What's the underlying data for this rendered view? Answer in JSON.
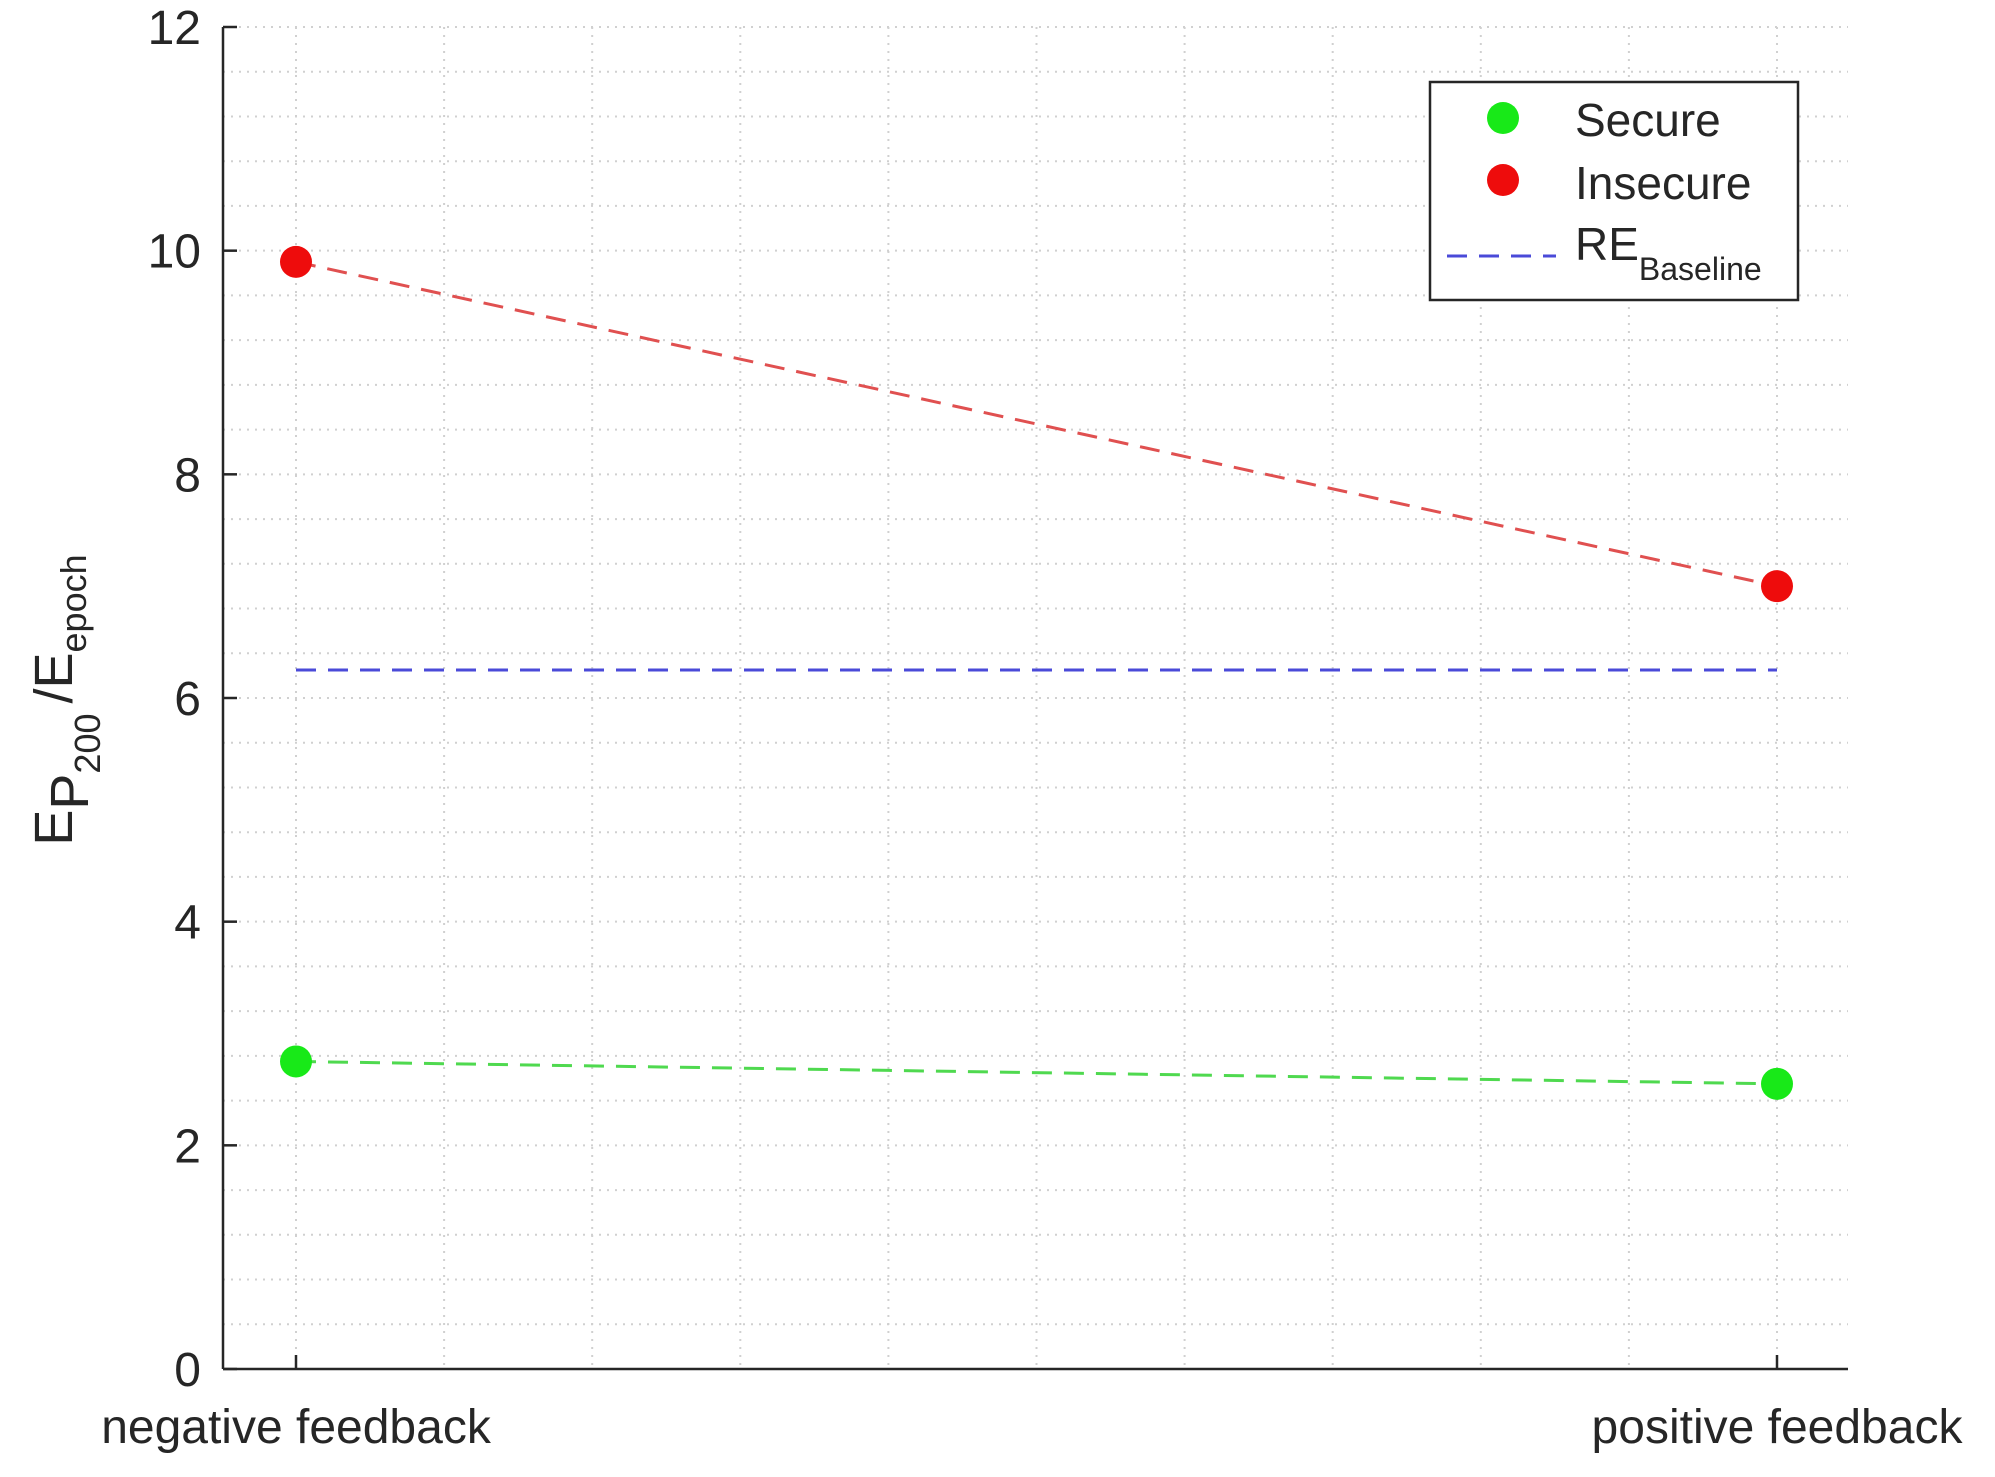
{
  "chart_data": {
    "type": "line",
    "categories": [
      "negative feedback",
      "positive feedback"
    ],
    "series": [
      {
        "name": "Secure",
        "values": [
          2.75,
          2.55
        ],
        "color": "#18e918",
        "marker": "circle",
        "line": "dashed"
      },
      {
        "name": "Insecure",
        "values": [
          9.9,
          7.0
        ],
        "color": "#ee0c0c",
        "marker": "circle",
        "line": "dashed"
      }
    ],
    "reference_lines": [
      {
        "name_main": "RE",
        "name_sub": "Baseline",
        "value": 6.25,
        "color": "#4a4ad8",
        "line": "dashed"
      }
    ],
    "ylabel": {
      "main_1": "E",
      "sub_1": "P",
      "sub_2": "200",
      "main_2": "/E",
      "sub_3": "epoch"
    },
    "xlabel": "",
    "ylim": [
      0,
      12
    ],
    "yticks": [
      "0",
      "2",
      "4",
      "6",
      "8",
      "10",
      "12"
    ],
    "grid": "dotted-minor",
    "legend_position": "top-right"
  }
}
